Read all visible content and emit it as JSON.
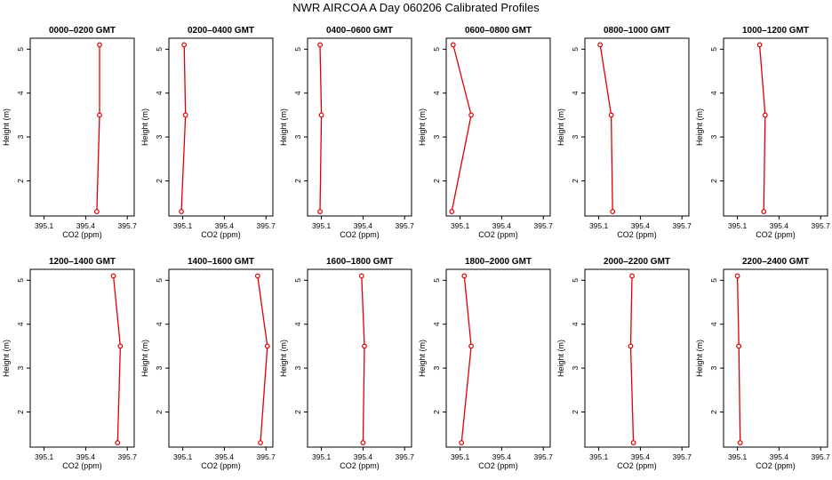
{
  "title": "NWR AIRCOA A  Day 060206  Calibrated Profiles",
  "chart_data": {
    "type": "line",
    "xlabel": "CO2 (ppm)",
    "ylabel": "Height (m)",
    "xlim": [
      395.0,
      395.75
    ],
    "ylim": [
      1.2,
      5.25
    ],
    "x_ticks": [
      395.1,
      395.4,
      395.7
    ],
    "x_tick_labels": [
      "395.1",
      "395.4",
      "395.7"
    ],
    "y_ticks": [
      2,
      3,
      4,
      5
    ],
    "y_tick_labels": [
      "2",
      "3",
      "4",
      "5"
    ],
    "line_color": "#e00000",
    "marker": "open-circle",
    "panels": [
      {
        "name": "0000–0200 GMT",
        "heights": [
          5.1,
          3.5,
          1.3
        ],
        "co2": [
          395.5,
          395.5,
          395.48
        ]
      },
      {
        "name": "0200–0400 GMT",
        "heights": [
          5.1,
          3.5,
          1.3
        ],
        "co2": [
          395.11,
          395.12,
          395.09
        ]
      },
      {
        "name": "0400–0600 GMT",
        "heights": [
          5.1,
          3.5,
          1.3
        ],
        "co2": [
          395.09,
          395.1,
          395.09
        ]
      },
      {
        "name": "0600–0800 GMT",
        "heights": [
          5.1,
          3.5,
          1.3
        ],
        "co2": [
          395.05,
          395.18,
          395.04
        ]
      },
      {
        "name": "0800–1000 GMT",
        "heights": [
          5.1,
          3.5,
          1.3
        ],
        "co2": [
          395.11,
          395.19,
          395.2
        ]
      },
      {
        "name": "1000–1200 GMT",
        "heights": [
          5.1,
          3.5,
          1.3
        ],
        "co2": [
          395.26,
          395.3,
          395.29
        ]
      },
      {
        "name": "1200–1400 GMT",
        "heights": [
          5.1,
          3.5,
          1.3
        ],
        "co2": [
          395.6,
          395.65,
          395.63
        ]
      },
      {
        "name": "1400–1600 GMT",
        "heights": [
          5.1,
          3.5,
          1.3
        ],
        "co2": [
          395.64,
          395.71,
          395.66
        ]
      },
      {
        "name": "1600–1800 GMT",
        "heights": [
          5.1,
          3.5,
          1.3
        ],
        "co2": [
          395.39,
          395.41,
          395.4
        ]
      },
      {
        "name": "1800–2000 GMT",
        "heights": [
          5.1,
          3.5,
          1.3
        ],
        "co2": [
          395.13,
          395.18,
          395.11
        ]
      },
      {
        "name": "2000–2200 GMT",
        "heights": [
          5.1,
          3.5,
          1.3
        ],
        "co2": [
          395.34,
          395.33,
          395.35
        ]
      },
      {
        "name": "2200–2400 GMT",
        "heights": [
          5.1,
          3.5,
          1.3
        ],
        "co2": [
          395.1,
          395.11,
          395.12
        ]
      }
    ]
  }
}
